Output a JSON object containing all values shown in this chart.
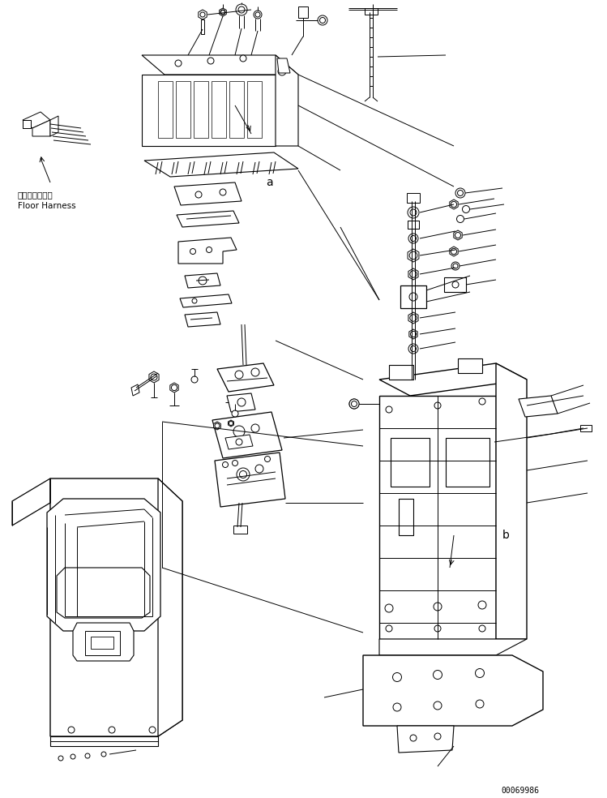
{
  "background_color": "#ffffff",
  "line_color": "#000000",
  "text_color": "#000000",
  "figsize": [
    7.49,
    9.84
  ],
  "dpi": 100,
  "label_floor_harness_jp": "フロアハーネス",
  "label_floor_harness_en": "Floor Harness",
  "label_a": "a",
  "label_b": "b",
  "part_number": "00069986"
}
